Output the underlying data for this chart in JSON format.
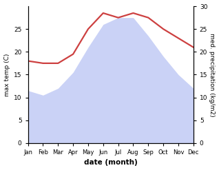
{
  "months": [
    "Jan",
    "Feb",
    "Mar",
    "Apr",
    "May",
    "Jun",
    "Jul",
    "Aug",
    "Sep",
    "Oct",
    "Nov",
    "Dec"
  ],
  "temp_data": [
    11.5,
    10.5,
    12.0,
    15.5,
    21.0,
    26.0,
    27.5,
    27.5,
    23.5,
    19.0,
    15.0,
    12.0
  ],
  "precip_data": [
    18.0,
    17.5,
    17.5,
    19.5,
    25.0,
    28.5,
    27.5,
    28.5,
    27.5,
    25.0,
    23.0,
    21.0
  ],
  "precip_color": "#cd4040",
  "fill_color": "#c5cef5",
  "ylabel_left": "max temp (C)",
  "ylabel_right": "med. precipitation (kg/m2)",
  "xlabel": "date (month)",
  "ylim_left": [
    0,
    30
  ],
  "ylim_right": [
    0,
    30
  ],
  "yticks_left": [
    0,
    5,
    10,
    15,
    20,
    25
  ],
  "yticks_right": [
    0,
    5,
    10,
    15,
    20,
    25,
    30
  ],
  "bg_color": "#ffffff"
}
